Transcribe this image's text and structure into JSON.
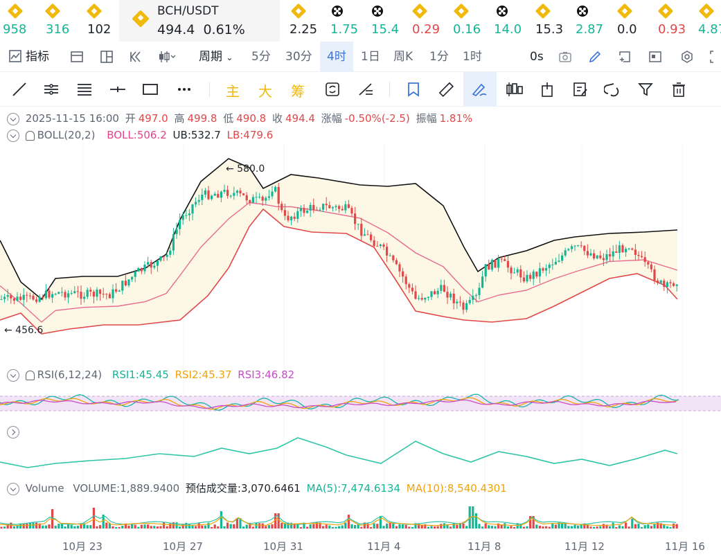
{
  "ticker": {
    "items": [
      {
        "icon": "bnb-icon",
        "value": "958",
        "color": "#16b595"
      },
      {
        "icon": "bnb-icon",
        "value": "316",
        "color": "#16b595"
      },
      {
        "icon": "bnb-icon",
        "value": "102",
        "color": "#1e2329"
      },
      {
        "icon": "bnb-icon",
        "value": "2.25",
        "color": "#1e2329"
      },
      {
        "icon": "x-icon",
        "value": "1.75",
        "color": "#16b595"
      },
      {
        "icon": "x-icon",
        "value": "15.4",
        "color": "#16b595"
      },
      {
        "icon": "bnb-icon",
        "value": "0.29",
        "color": "#e0484a"
      },
      {
        "icon": "bnb-icon",
        "value": "0.16",
        "color": "#16b595"
      },
      {
        "icon": "x-icon",
        "value": "14.0",
        "color": "#16b595"
      },
      {
        "icon": "bnb-icon",
        "value": "15.3",
        "color": "#1e2329"
      },
      {
        "icon": "x-icon",
        "value": "2.87",
        "color": "#16b595"
      },
      {
        "icon": "bnb-icon",
        "value": "0.0",
        "color": "#1e2329"
      },
      {
        "icon": "bnb-icon",
        "value": "0.93",
        "color": "#e0484a"
      },
      {
        "icon": "bnb-icon",
        "value": "4.87",
        "color": "#16b595"
      }
    ],
    "active": {
      "symbol": "BCH/USDT",
      "price": "494.4",
      "change": "0.61%"
    }
  },
  "timeframe_bar": {
    "indicator_label": "指标",
    "period_label": "周期",
    "intervals": [
      "5分",
      "30分",
      "4时",
      "1日",
      "周K",
      "1分",
      "1时"
    ],
    "selected": "4时",
    "countdown": "0s"
  },
  "drawing_bar": {
    "text_tools": [
      "主",
      "大",
      "筹"
    ]
  },
  "ohlc": {
    "datetime": "2025-11-15 16:00",
    "open_label": "开",
    "open": "497.0",
    "high_label": "高",
    "high": "499.8",
    "low_label": "低",
    "low": "490.8",
    "close_label": "收",
    "close": "494.4",
    "change_label": "涨幅",
    "change": "-0.50%(-2.5)",
    "amplitude_label": "振幅",
    "amplitude": "1.81%"
  },
  "boll": {
    "name": "BOLL(20,2)",
    "boll": "BOLL:506.2",
    "ub": "UB:532.7",
    "lb": "LB:479.6"
  },
  "price_markers": {
    "high": "← 580.0",
    "low": "← 456.6"
  },
  "rsi": {
    "name": "RSI(6,12,24)",
    "rsi1": "RSI1:45.45",
    "rsi2": "RSI2:45.37",
    "rsi3": "RSI3:46.82"
  },
  "volume": {
    "name": "Volume",
    "volume": "VOLUME:1,889.9400",
    "estimate": "预估成交量:3,070.6461",
    "ma5": "MA(5):7,474.6134",
    "ma10": "MA(10):8,540.4301"
  },
  "x_axis": [
    "10月 23",
    "10月 27",
    "10月 31",
    "11月 4",
    "11月 8",
    "11月 12",
    "11月 16"
  ],
  "colors": {
    "up": "#16b595",
    "down": "#e0484a",
    "boll_band": "#fdf8e6",
    "boll_mid": "#e86b8f",
    "rsi_band": "#f3e3f6",
    "accent": "#3b75d9"
  }
}
